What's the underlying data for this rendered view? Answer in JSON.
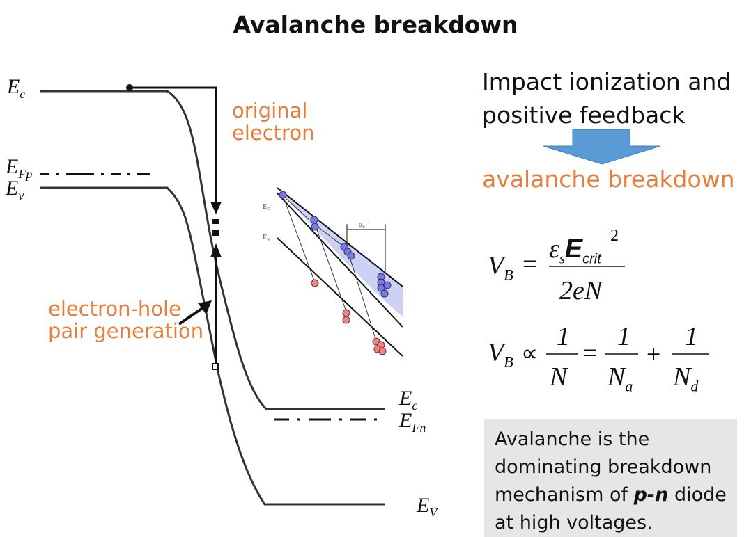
{
  "title": "Avalanche breakdown",
  "band_labels": {
    "ec_left": "E",
    "ec_left_sub": "c",
    "efp": "E",
    "efp_sub": "Fp",
    "ev_left": "E",
    "ev_left_sub": "v",
    "ec_right": "E",
    "ec_right_sub": "c",
    "efn": "E",
    "efn_sub": "Fn",
    "ev_right": "E",
    "ev_right_sub": "V"
  },
  "annotations": {
    "original_line1": "original",
    "original_line2": "electron",
    "pair_line1": "electron-hole",
    "pair_line2": "pair generation"
  },
  "inset_labels": {
    "ec": "E",
    "ec_sub": "c",
    "ev": "E",
    "ev_sub": "v",
    "alpha": "α",
    "alpha_sub": "n",
    "alpha_sup": "−1"
  },
  "right_panel": {
    "impact_line1": "Impact ionization and",
    "impact_line2": "positive  feedback",
    "result": "avalanche breakdown",
    "arrow_color": "#5B9BD5"
  },
  "equations": {
    "vb": "V",
    "vb_sub": "B",
    "equals": "=",
    "eps": "ε",
    "eps_sub": "s",
    "ecrit": "E",
    "ecrit_sub": "crit",
    "square": "2",
    "denominator": "2eN",
    "prop": "∝",
    "one": "1",
    "n": "N",
    "na": "N",
    "na_sub": "a",
    "nd": "N",
    "nd_sub": "d",
    "plus": "+"
  },
  "note": {
    "part1": "Avalanche is the dominating breakdown mechanism of ",
    "bold": "p-n",
    "part2": " diode at high voltages."
  },
  "colors": {
    "orange": "#E57E3C",
    "electron": "#5A5AC8",
    "hole": "#D9534F",
    "inset_fill": "#C8CCF2"
  }
}
